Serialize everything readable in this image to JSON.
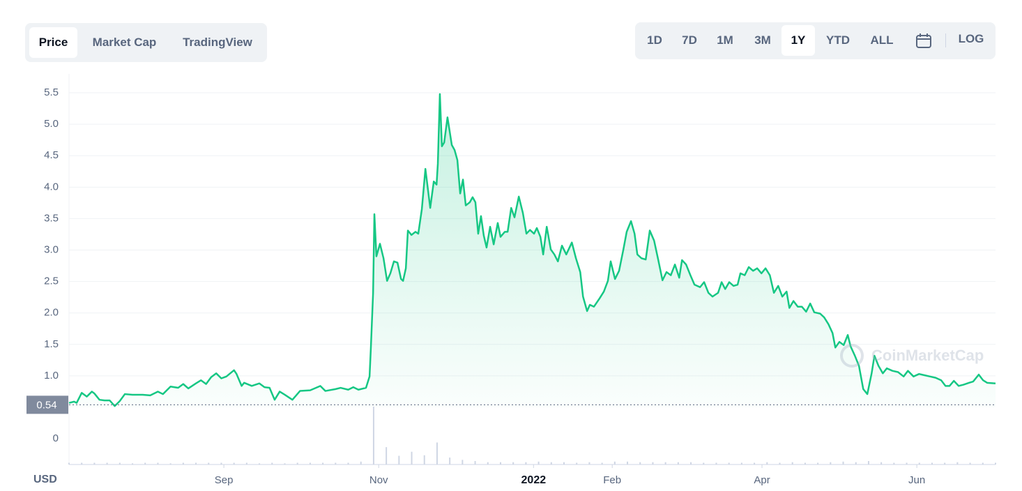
{
  "ui": {
    "tabs": [
      "Price",
      "Market Cap",
      "TradingView"
    ],
    "ranges": [
      "1D",
      "7D",
      "1M",
      "3M",
      "1Y",
      "YTD",
      "ALL"
    ],
    "log": "LOG"
  },
  "chart_data": {
    "type": "line",
    "color": "#16c784",
    "currency_label": "USD",
    "watermark": "CoinMarketCap",
    "price_marker": 0.54,
    "grid": true,
    "xlim": [
      0,
      365
    ],
    "xticks": [
      {
        "value": 61,
        "label": "Sep"
      },
      {
        "value": 122,
        "label": "Nov"
      },
      {
        "value": 183,
        "label": "2022"
      },
      {
        "value": 214,
        "label": "Feb"
      },
      {
        "value": 273,
        "label": "Apr"
      },
      {
        "value": 334,
        "label": "Jun"
      }
    ],
    "ylim": [
      0.5,
      5.8
    ],
    "yticks": [
      {
        "value": 1,
        "label": "1.0"
      },
      1.5,
      {
        "value": 2,
        "label": "2.0"
      },
      2.5,
      {
        "value": 3,
        "label": "3.0"
      },
      3.5,
      {
        "value": 4,
        "label": "4.0"
      },
      4.5,
      {
        "value": 5,
        "label": "5.0"
      },
      5.5
    ],
    "x": [
      0,
      2,
      3,
      5,
      7,
      9,
      10,
      12,
      14,
      16,
      18,
      20,
      22,
      25,
      29,
      32,
      35,
      37,
      40,
      43,
      45,
      47,
      50,
      52,
      54,
      56,
      58,
      60,
      62,
      65,
      66,
      68,
      69,
      72,
      75,
      77,
      79,
      81,
      83,
      85,
      88,
      91,
      95,
      99,
      101,
      105,
      107,
      110,
      112,
      114,
      117,
      118.4,
      118.9,
      119.8,
      120.3,
      121.1,
      122.5,
      123.9,
      125.3,
      126.6,
      128,
      129.4,
      130.8,
      131.6,
      132.7,
      133.5,
      134.9,
      136.5,
      137.6,
      139,
      140.4,
      142.3,
      143.7,
      144.8,
      145.3,
      146.1,
      146.9,
      147.8,
      149.1,
      150.8,
      151.9,
      153,
      154.1,
      155.2,
      156.3,
      157.9,
      159,
      160.1,
      161.2,
      162.3,
      163.4,
      164.5,
      165.9,
      167.3,
      168.9,
      170,
      171.7,
      172.8,
      174.2,
      175.5,
      177.2,
      178.8,
      180.2,
      181.6,
      183.2,
      184.3,
      185.7,
      186.8,
      188.2,
      189.8,
      191.2,
      192.6,
      194.2,
      195.9,
      198.1,
      199.7,
      201.4,
      202.5,
      204.1,
      205.2,
      206.8,
      209,
      210.7,
      212.3,
      213.4,
      215.1,
      216.7,
      218.4,
      219.7,
      221.4,
      222.8,
      223.9,
      225.5,
      227.2,
      228.8,
      230.5,
      232.1,
      233.8,
      235.4,
      237.1,
      238.7,
      240.4,
      241.5,
      243.1,
      244.8,
      246.4,
      248.6,
      250.2,
      251.9,
      253.5,
      255.7,
      257.1,
      258.5,
      260.1,
      261.8,
      263.4,
      264.5,
      266.2,
      267.8,
      269.5,
      271.1,
      272.8,
      274.4,
      276.1,
      277.7,
      279.4,
      281,
      282.7,
      283.8,
      285.4,
      287.1,
      288.7,
      290.4,
      292,
      293.6,
      295.9,
      297.5,
      299.2,
      300.8,
      301.9,
      303.5,
      305.2,
      306.8,
      307.9,
      309.6,
      311.2,
      312.9,
      314.5,
      316.2,
      317.3,
      318.9,
      320.6,
      322.2,
      324.4,
      326.6,
      328.8,
      330.5,
      332.7,
      334.9,
      337,
      339.2,
      341.4,
      343.6,
      345.3,
      346.9,
      348.6,
      350.5,
      352.4,
      354.6,
      356.2,
      358.4,
      360.1,
      361.7,
      365
    ],
    "values": [
      0.57,
      0.59,
      0.57,
      0.73,
      0.67,
      0.75,
      0.72,
      0.62,
      0.61,
      0.61,
      0.52,
      0.6,
      0.71,
      0.7,
      0.7,
      0.69,
      0.75,
      0.71,
      0.83,
      0.81,
      0.87,
      0.8,
      0.88,
      0.93,
      0.87,
      0.98,
      1.04,
      0.96,
      0.99,
      1.09,
      1.03,
      0.84,
      0.89,
      0.84,
      0.88,
      0.82,
      0.81,
      0.62,
      0.75,
      0.7,
      0.62,
      0.76,
      0.77,
      0.84,
      0.76,
      0.79,
      0.81,
      0.78,
      0.82,
      0.78,
      0.81,
      0.99,
      1.43,
      2.32,
      3.57,
      2.9,
      3.1,
      2.87,
      2.51,
      2.63,
      2.82,
      2.8,
      2.54,
      2.51,
      2.71,
      3.31,
      3.24,
      3.29,
      3.26,
      3.65,
      4.29,
      3.67,
      4.09,
      4.04,
      4.37,
      5.48,
      4.65,
      4.71,
      5.11,
      4.67,
      4.59,
      4.43,
      3.9,
      4.12,
      3.71,
      3.76,
      3.84,
      3.76,
      3.26,
      3.54,
      3.23,
      3.04,
      3.37,
      3.09,
      3.43,
      3.21,
      3.29,
      3.29,
      3.67,
      3.52,
      3.85,
      3.59,
      3.26,
      3.32,
      3.26,
      3.35,
      3.21,
      2.93,
      3.37,
      3.01,
      2.93,
      2.82,
      3.07,
      2.93,
      3.12,
      2.87,
      2.65,
      2.26,
      2.03,
      2.13,
      2.1,
      2.23,
      2.34,
      2.51,
      2.82,
      2.54,
      2.67,
      3.01,
      3.29,
      3.46,
      3.26,
      2.93,
      2.87,
      2.85,
      3.31,
      3.15,
      2.85,
      2.52,
      2.65,
      2.6,
      2.77,
      2.56,
      2.84,
      2.77,
      2.6,
      2.45,
      2.41,
      2.49,
      2.32,
      2.26,
      2.32,
      2.49,
      2.38,
      2.49,
      2.43,
      2.45,
      2.63,
      2.6,
      2.73,
      2.67,
      2.71,
      2.63,
      2.71,
      2.6,
      2.32,
      2.43,
      2.26,
      2.34,
      2.08,
      2.19,
      2.1,
      2.1,
      2.02,
      2.15,
      2.01,
      1.99,
      1.93,
      1.82,
      1.68,
      1.45,
      1.54,
      1.49,
      1.65,
      1.47,
      1.32,
      1.16,
      0.79,
      0.71,
      1.04,
      1.32,
      1.16,
      1.04,
      1.12,
      1.08,
      1.06,
      0.99,
      1.08,
      0.99,
      1.03,
      1.01,
      0.99,
      0.97,
      0.93,
      0.84,
      0.84,
      0.92,
      0.84,
      0.86,
      0.89,
      0.91,
      1.02,
      0.93,
      0.89,
      0.88
    ],
    "volume": {
      "color": "#cfd6e4",
      "ylim": [
        0,
        100
      ],
      "yticks": [
        0
      ],
      "x": [
        0,
        5,
        10,
        15,
        20,
        25,
        30,
        35,
        40,
        45,
        50,
        55,
        60,
        65,
        70,
        75,
        80,
        85,
        90,
        95,
        100,
        105,
        110,
        115,
        120,
        125,
        130,
        135,
        140,
        145,
        150,
        155,
        160,
        165,
        170,
        175,
        180,
        185,
        190,
        195,
        200,
        205,
        210,
        215,
        220,
        225,
        230,
        235,
        240,
        245,
        250,
        255,
        260,
        265,
        270,
        275,
        280,
        285,
        290,
        295,
        300,
        305,
        310,
        315,
        320,
        325,
        330,
        335,
        340,
        345,
        350,
        355,
        360,
        365
      ],
      "values": [
        3,
        3,
        3,
        3,
        3,
        2,
        3,
        3,
        2,
        3,
        3,
        3,
        3,
        3,
        3,
        2,
        3,
        2,
        3,
        3,
        3,
        3,
        3,
        5,
        100,
        30,
        15,
        22,
        16,
        38,
        12,
        8,
        6,
        4,
        4,
        4,
        4,
        5,
        4,
        4,
        3,
        4,
        3,
        5,
        5,
        4,
        4,
        4,
        4,
        4,
        3,
        3,
        3,
        3,
        3,
        4,
        3,
        4,
        3,
        3,
        4,
        5,
        4,
        6,
        4,
        3,
        3,
        3,
        3,
        3,
        4,
        3,
        3,
        3
      ]
    }
  }
}
